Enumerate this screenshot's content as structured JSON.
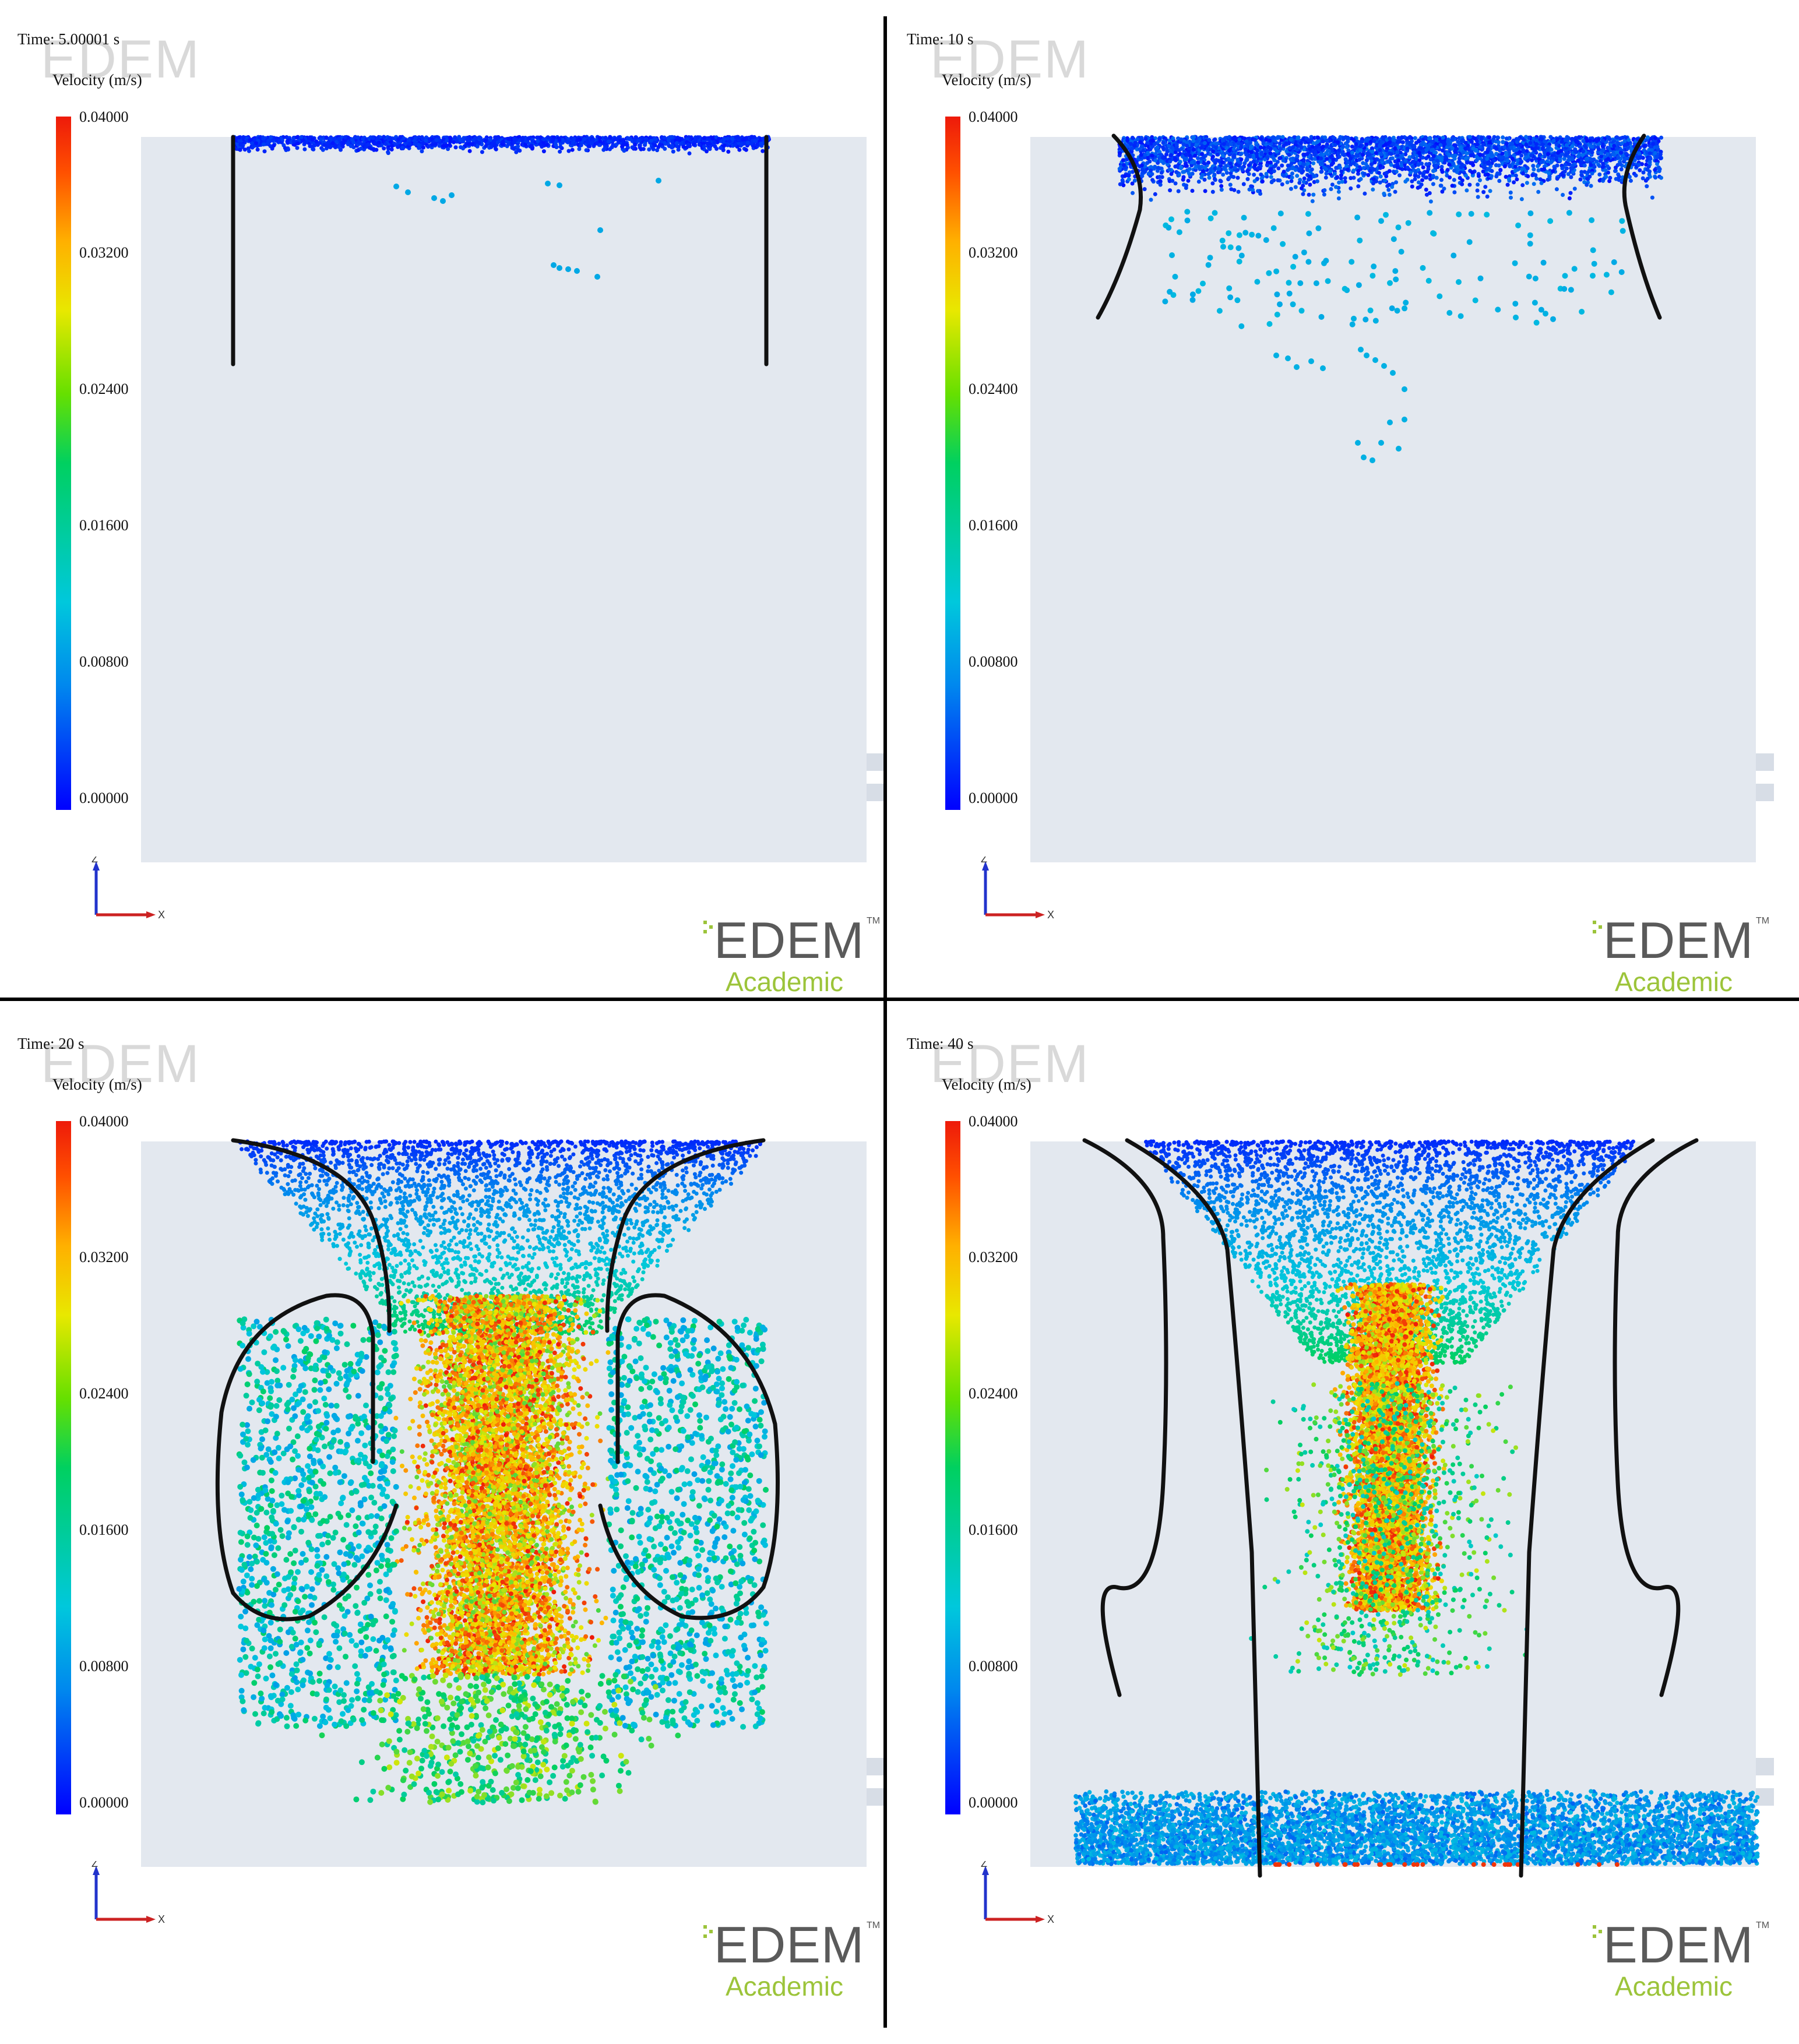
{
  "panels": [
    {
      "time_label": "Time: 5.00001 s",
      "legend_title": "Velocity (m/s)",
      "ticks": [
        "0.04000",
        "0.03200",
        "0.02400",
        "0.01600",
        "0.00800",
        "0.00000"
      ],
      "watermark": "EDEM",
      "logo": {
        "text": "EDEM",
        "tm": "TM",
        "subtitle": "Academic"
      },
      "axis_labels": {
        "z": "Z",
        "x": "X"
      }
    },
    {
      "time_label": "Time: 10 s",
      "legend_title": "Velocity (m/s)",
      "ticks": [
        "0.04000",
        "0.03200",
        "0.02400",
        "0.01600",
        "0.00800",
        "0.00000"
      ],
      "watermark": "EDEM",
      "logo": {
        "text": "EDEM",
        "tm": "TM",
        "subtitle": "Academic"
      },
      "axis_labels": {
        "z": "Z",
        "x": "X"
      }
    },
    {
      "time_label": "Time: 20 s",
      "legend_title": "Velocity (m/s)",
      "ticks": [
        "0.04000",
        "0.03200",
        "0.02400",
        "0.01600",
        "0.00800",
        "0.00000"
      ],
      "watermark": "EDEM",
      "logo": {
        "text": "EDEM",
        "tm": "TM",
        "subtitle": "Academic"
      },
      "axis_labels": {
        "z": "Z",
        "x": "X"
      }
    },
    {
      "time_label": "Time: 40 s",
      "legend_title": "Velocity (m/s)",
      "ticks": [
        "0.04000",
        "0.03200",
        "0.02400",
        "0.01600",
        "0.00800",
        "0.00000"
      ],
      "watermark": "EDEM",
      "logo": {
        "text": "EDEM",
        "tm": "TM",
        "subtitle": "Academic"
      },
      "axis_labels": {
        "z": "Z",
        "x": "X"
      }
    }
  ],
  "colors": {
    "viewport_background": "#e3e8ef",
    "divider": "#000000",
    "flow_lines": "#111111",
    "velocity_scale": [
      "#0000ff",
      "#0088ee",
      "#00c8dc",
      "#00d060",
      "#e8e800",
      "#ffb000",
      "#ee1a0a"
    ],
    "logo_text": "#5a5a5a",
    "logo_subtitle": "#9cc43a"
  }
}
